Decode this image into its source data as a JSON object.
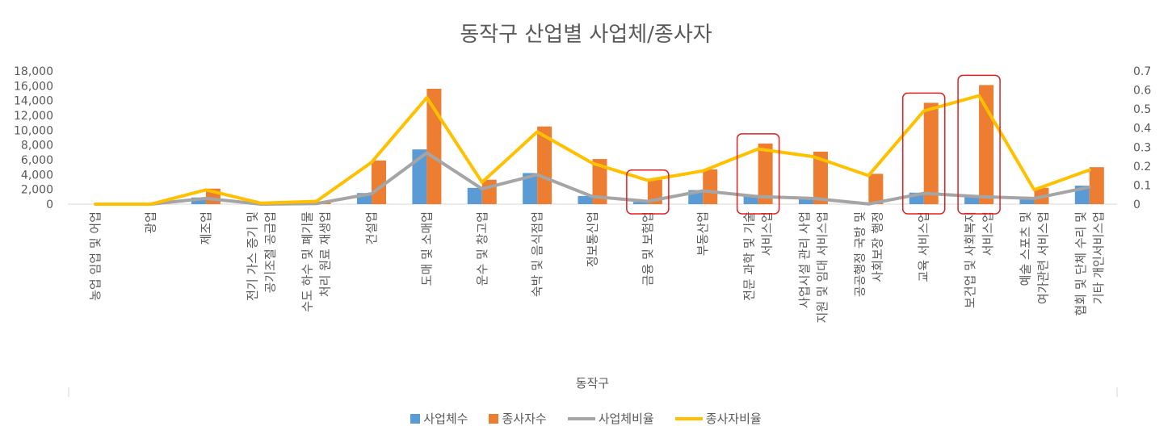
{
  "chart_data": {
    "type": "bar",
    "title": "동작구 산업별 사업체/종사자",
    "xlabel": "동작구",
    "ylabel": "",
    "ylim": [
      0,
      18000
    ],
    "y2lim": [
      0,
      0.7
    ],
    "y_ticks": [
      "0",
      "2,000",
      "4,000",
      "6,000",
      "8,000",
      "10,000",
      "12,000",
      "14,000",
      "16,000",
      "18,000"
    ],
    "y2_ticks": [
      "0",
      "0.1",
      "0.2",
      "0.3",
      "0.4",
      "0.5",
      "0.6",
      "0.7"
    ],
    "categories": [
      [
        "농업 임업 및 어업"
      ],
      [
        "광업"
      ],
      [
        "제조업"
      ],
      [
        "전기 가스 증기 및",
        "공기조절 공급업"
      ],
      [
        "수도 하수 및 폐기물",
        "처리 원료 재생업"
      ],
      [
        "건설업"
      ],
      [
        "도매 및 소매업"
      ],
      [
        "운수 및 창고업"
      ],
      [
        "숙박 및 음식점업"
      ],
      [
        "정보통신업"
      ],
      [
        "금융 및 보험업"
      ],
      [
        "부동산업"
      ],
      [
        "전문 과학 및 기술",
        "서비스업"
      ],
      [
        "사업시설 관리 사업",
        "지원 및 임대 서비스업"
      ],
      [
        "공공행정 국방 및",
        "사회보장 행정"
      ],
      [
        "교육 서비스업"
      ],
      [
        "보건업 및 사회복지",
        "서비스업"
      ],
      [
        "예술 스포츠 및",
        "여가관련 서비스업"
      ],
      [
        "협회 및 단체 수리 및",
        "기타 개인서비스업"
      ]
    ],
    "series": [
      {
        "name": "사업체수",
        "type": "bar",
        "axis": "left",
        "color": "#5B9BD5",
        "values": [
          0,
          0,
          900,
          0,
          50,
          1500,
          7400,
          2200,
          4200,
          1100,
          300,
          1900,
          1100,
          800,
          30,
          1550,
          1000,
          700,
          2500
        ]
      },
      {
        "name": "종사자수",
        "type": "bar",
        "axis": "left",
        "color": "#ED7D31",
        "values": [
          0,
          0,
          2100,
          100,
          200,
          5900,
          15600,
          3300,
          10500,
          6100,
          3300,
          4700,
          8200,
          7100,
          4100,
          13700,
          16100,
          2200,
          5000
        ]
      },
      {
        "name": "사업체비율",
        "type": "line",
        "axis": "right",
        "color": "#A5A5A5",
        "values": [
          0,
          0,
          0.03,
          0,
          0.003,
          0.055,
          0.27,
          0.08,
          0.155,
          0.04,
          0.015,
          0.07,
          0.04,
          0.03,
          0.001,
          0.057,
          0.04,
          0.03,
          0.09
        ]
      },
      {
        "name": "종사자비율",
        "type": "line",
        "axis": "right",
        "color": "#FFC000",
        "values": [
          0,
          0,
          0.075,
          0.005,
          0.015,
          0.22,
          0.56,
          0.115,
          0.38,
          0.215,
          0.125,
          0.175,
          0.29,
          0.25,
          0.15,
          0.49,
          0.57,
          0.075,
          0.18
        ]
      }
    ],
    "highlighted_categories": [
      10,
      12,
      15,
      16
    ],
    "highlight_color": "#E02020",
    "grid": false,
    "legend_position": "bottom"
  }
}
